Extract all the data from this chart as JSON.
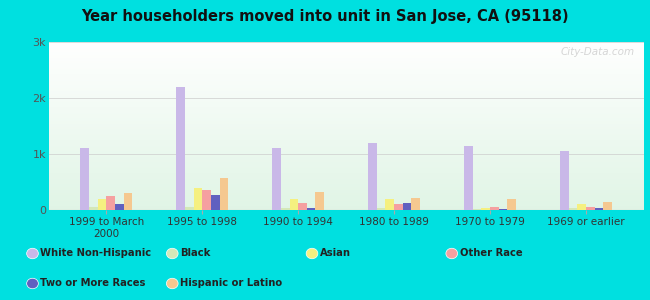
{
  "title": "Year householders moved into unit in San Jose, CA (95118)",
  "categories": [
    "1999 to March\n2000",
    "1995 to 1998",
    "1990 to 1994",
    "1980 to 1989",
    "1970 to 1979",
    "1969 or earlier"
  ],
  "series": {
    "White Non-Hispanic": [
      1100,
      2200,
      1100,
      1200,
      1150,
      1050
    ],
    "Black": [
      50,
      50,
      30,
      30,
      20,
      30
    ],
    "Asian": [
      200,
      400,
      200,
      200,
      30,
      100
    ],
    "Other Race": [
      250,
      350,
      130,
      100,
      50,
      50
    ],
    "Two or More Races": [
      100,
      270,
      40,
      130,
      20,
      30
    ],
    "Hispanic or Latino": [
      300,
      580,
      320,
      220,
      200,
      150
    ]
  },
  "colors": {
    "White Non-Hispanic": "#c9b8e8",
    "Black": "#d4e8b8",
    "Asian": "#f5f080",
    "Other Race": "#f5a0a0",
    "Two or More Races": "#6060c0",
    "Hispanic or Latino": "#f5c890"
  },
  "ylim": [
    0,
    3000
  ],
  "yticks": [
    0,
    1000,
    2000,
    3000
  ],
  "ytick_labels": [
    "0",
    "1k",
    "2k",
    "3k"
  ],
  "background_color": "#00e0e0",
  "watermark": "City-Data.com",
  "row1": [
    "White Non-Hispanic",
    "Black",
    "Asian",
    "Other Race"
  ],
  "row2": [
    "Two or More Races",
    "Hispanic or Latino"
  ]
}
